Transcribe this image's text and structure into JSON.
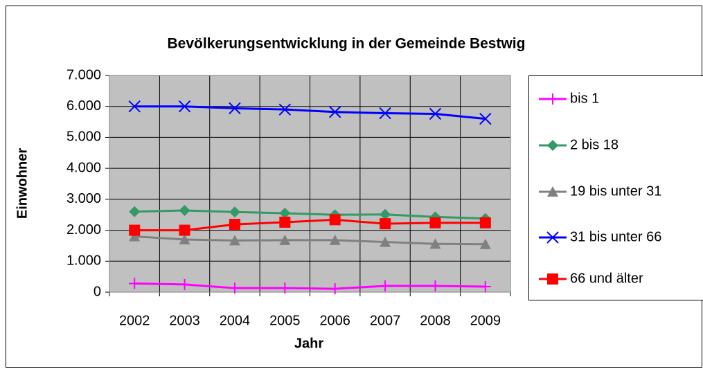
{
  "chart_data": {
    "type": "line",
    "title": "Bevölkerungsentwicklung in der Gemeinde Bestwig",
    "x_label": "Jahr",
    "y_label": "Einwohner",
    "categories": [
      "2002",
      "2003",
      "2004",
      "2005",
      "2006",
      "2007",
      "2008",
      "2009"
    ],
    "series": [
      {
        "name": "bis 1",
        "color": "#ff00ff",
        "marker": "plus",
        "values": [
          280,
          250,
          130,
          130,
          110,
          200,
          200,
          180
        ]
      },
      {
        "name": "2 bis 18",
        "color": "#339966",
        "marker": "diamond",
        "values": [
          2600,
          2640,
          2590,
          2550,
          2500,
          2510,
          2430,
          2380
        ]
      },
      {
        "name": "19 bis unter 31",
        "color": "#808080",
        "marker": "triangle",
        "values": [
          1800,
          1700,
          1670,
          1680,
          1680,
          1620,
          1560,
          1550
        ]
      },
      {
        "name": "31 bis unter 66",
        "color": "#0000ff",
        "marker": "cross",
        "values": [
          6000,
          6000,
          5940,
          5900,
          5820,
          5780,
          5760,
          5600
        ]
      },
      {
        "name": "66 und älter",
        "color": "#ff0000",
        "marker": "square",
        "values": [
          2000,
          2000,
          2190,
          2260,
          2340,
          2210,
          2240,
          2240
        ]
      }
    ],
    "ylim": [
      0,
      7000
    ],
    "yticks": [
      0,
      {
        "value": 1000,
        "label": "1.000"
      },
      {
        "value": 2000,
        "label": "2.000"
      },
      {
        "value": 3000,
        "label": "3.000"
      },
      {
        "value": 4000,
        "label": "4.000"
      },
      {
        "value": 5000,
        "label": "5.000"
      },
      {
        "value": 6000,
        "label": "6.000"
      },
      {
        "value": 7000,
        "label": "7.000"
      }
    ],
    "grid": true,
    "legend": "right",
    "plot_background": "#c0c0c0"
  }
}
